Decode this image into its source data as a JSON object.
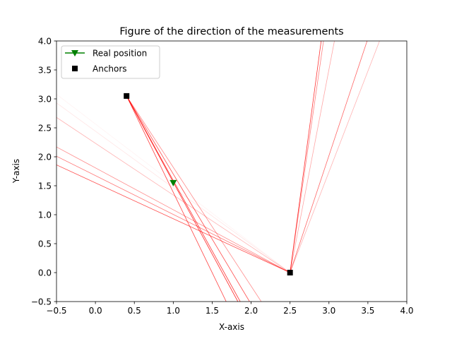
{
  "chart_data": {
    "type": "line",
    "title": "Figure of the direction of the measurements",
    "xlabel": "X-axis",
    "ylabel": "Y-axis",
    "xlim": [
      -0.5,
      4.0
    ],
    "ylim": [
      -0.5,
      4.0
    ],
    "xticks": [
      "−0.5",
      "0.0",
      "0.5",
      "1.0",
      "1.5",
      "2.0",
      "2.5",
      "3.0",
      "3.5",
      "4.0"
    ],
    "yticks": [
      "−0.5",
      "0.0",
      "0.5",
      "1.0",
      "1.5",
      "2.0",
      "2.5",
      "3.0",
      "3.5",
      "4.0"
    ],
    "grid": false,
    "legend_position": "top-left",
    "legend": [
      {
        "label": "Real position",
        "marker": "triangle-down",
        "color": "#008000",
        "line": true
      },
      {
        "label": "Anchors",
        "marker": "square",
        "color": "#000000",
        "line": false
      }
    ],
    "anchors": [
      {
        "x": 0.4,
        "y": 3.05
      },
      {
        "x": 2.5,
        "y": 0.0
      }
    ],
    "real_position": {
      "x": 1.0,
      "y": 1.55
    },
    "measurement_color": "#ff0000",
    "measurement_lines": [
      {
        "x": [
          0.4,
          1.68
        ],
        "y": [
          3.05,
          -0.5
        ],
        "opacity": 0.75
      },
      {
        "x": [
          0.4,
          1.83
        ],
        "y": [
          3.05,
          -0.5
        ],
        "opacity": 0.85
      },
      {
        "x": [
          0.4,
          1.86
        ],
        "y": [
          3.05,
          -0.5
        ],
        "opacity": 0.8
      },
      {
        "x": [
          0.4,
          1.98
        ],
        "y": [
          3.05,
          -0.5
        ],
        "opacity": 0.7
      },
      {
        "x": [
          0.4,
          2.13
        ],
        "y": [
          3.05,
          -0.5
        ],
        "opacity": 0.45
      },
      {
        "x": [
          2.5,
          -0.5
        ],
        "y": [
          0.0,
          1.86
        ],
        "opacity": 0.7
      },
      {
        "x": [
          2.5,
          -0.5
        ],
        "y": [
          0.0,
          2.01
        ],
        "opacity": 0.55
      },
      {
        "x": [
          2.5,
          -0.5
        ],
        "y": [
          0.0,
          2.17
        ],
        "opacity": 0.45
      },
      {
        "x": [
          2.5,
          -0.5
        ],
        "y": [
          0.0,
          2.68
        ],
        "opacity": 0.3
      },
      {
        "x": [
          2.5,
          -0.5
        ],
        "y": [
          0.0,
          2.93
        ],
        "opacity": 0.1
      },
      {
        "x": [
          2.5,
          -0.5
        ],
        "y": [
          0.0,
          3.08
        ],
        "opacity": 0.05
      },
      {
        "x": [
          2.5,
          2.9
        ],
        "y": [
          0.0,
          4.0
        ],
        "opacity": 0.8
      },
      {
        "x": [
          2.5,
          2.93
        ],
        "y": [
          0.0,
          4.0
        ],
        "opacity": 0.5
      },
      {
        "x": [
          2.5,
          3.07
        ],
        "y": [
          0.0,
          4.0
        ],
        "opacity": 0.35
      },
      {
        "x": [
          2.5,
          3.49
        ],
        "y": [
          0.0,
          4.0
        ],
        "opacity": 0.6
      },
      {
        "x": [
          2.5,
          3.65
        ],
        "y": [
          0.0,
          4.0
        ],
        "opacity": 0.3
      }
    ]
  }
}
